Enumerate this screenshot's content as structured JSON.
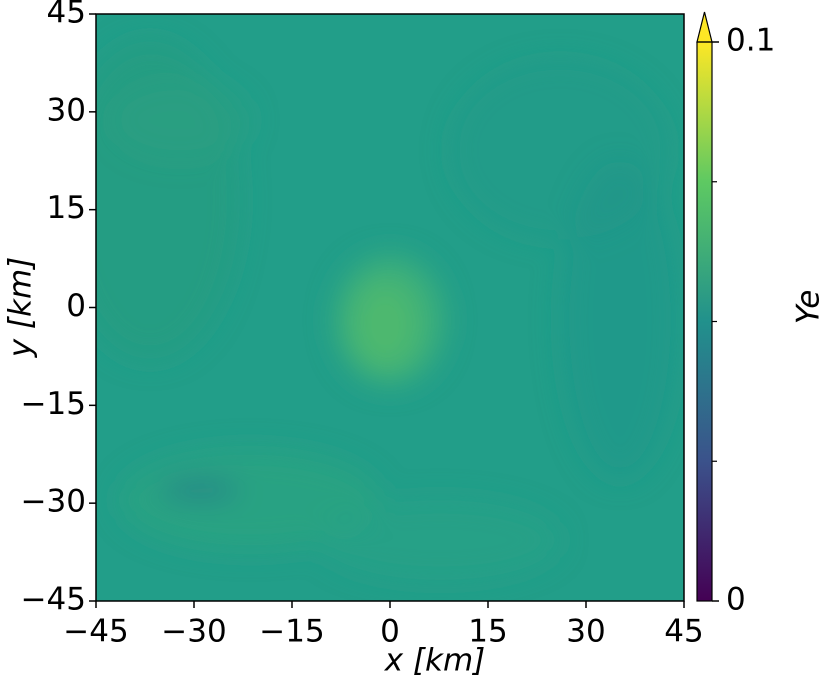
{
  "chart_data": {
    "type": "heatmap",
    "xlabel": "x [km]",
    "ylabel": "y [km]",
    "xlim": [
      -45,
      45
    ],
    "ylim": [
      -45,
      45
    ],
    "xticks": [
      {
        "value": -45,
        "label": "−45"
      },
      {
        "value": -30,
        "label": "−30"
      },
      {
        "value": -15,
        "label": "−15"
      },
      0,
      15,
      30,
      45
    ],
    "yticks": [
      {
        "value": -45,
        "label": "−45"
      },
      {
        "value": -30,
        "label": "−30"
      },
      {
        "value": -15,
        "label": "−15"
      },
      0,
      15,
      30,
      45
    ],
    "colorbar": {
      "label": "Ye",
      "clim": [
        0,
        0.1
      ],
      "ticks": [
        0,
        0.1
      ],
      "minor_ticks": [
        0.025,
        0.05,
        0.075
      ],
      "extend": "max",
      "colors": [
        "#440154",
        "#3b528b",
        "#21918c",
        "#5ec962",
        "#fde725"
      ]
    },
    "color": "#229e89"
  }
}
